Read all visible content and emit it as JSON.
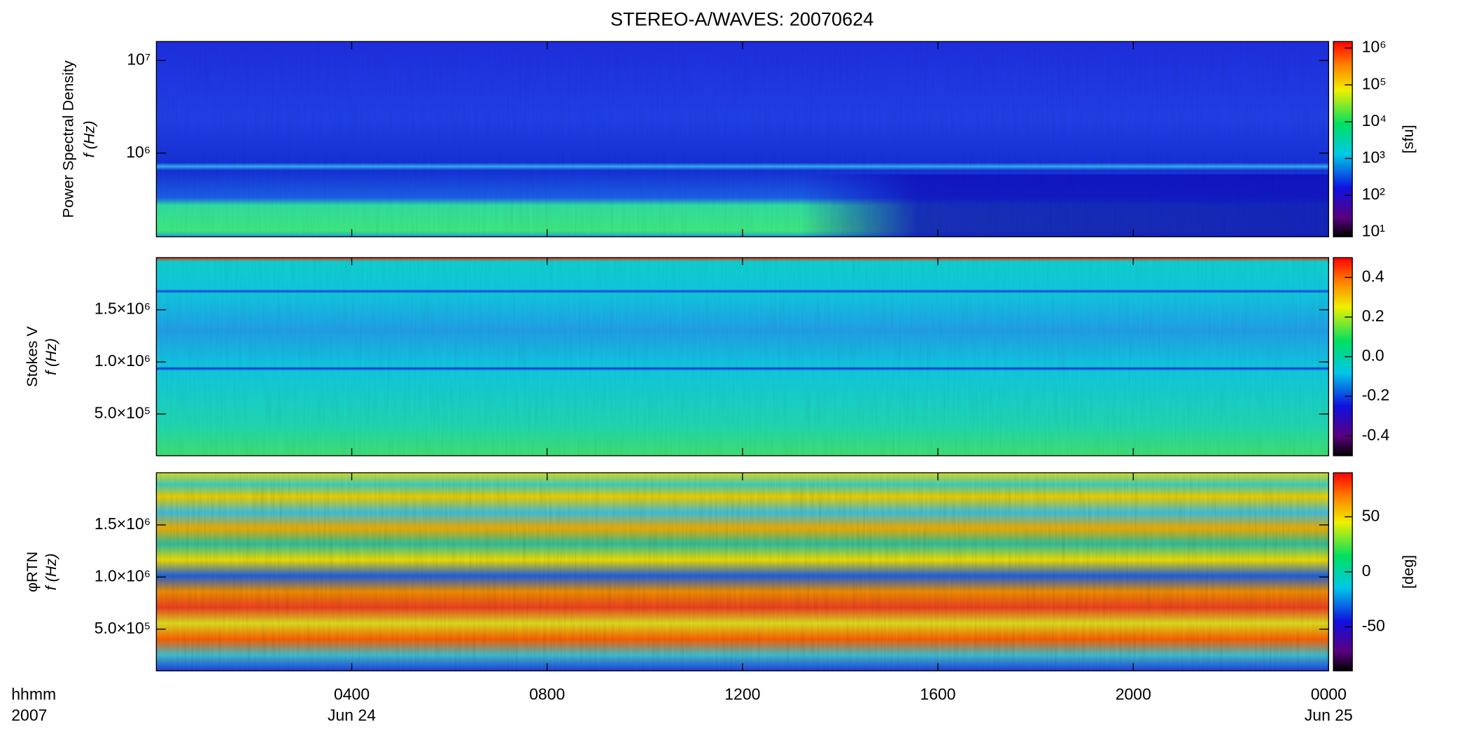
{
  "title": "STEREO-A/WAVES: 20070624",
  "x_axis": {
    "xlim": [
      0,
      24
    ],
    "xticks": [
      {
        "value": 4,
        "label": "0400"
      },
      {
        "value": 8,
        "label": "0800"
      },
      {
        "value": 12,
        "label": "1200"
      },
      {
        "value": 16,
        "label": "1600"
      },
      {
        "value": 20,
        "label": "2000"
      },
      {
        "value": 24,
        "label": "0000"
      }
    ],
    "time_label": "hhmm",
    "year_label": "2007",
    "date_labels": [
      {
        "at": 4,
        "label": "Jun 24"
      },
      {
        "at": 24,
        "label": "Jun 25"
      }
    ]
  },
  "chart_data": [
    {
      "type": "heatmap",
      "ylabel": [
        "Power Spectral Density",
        "f (Hz)"
      ],
      "log_y": true,
      "ylim": [
        125000,
        16000000
      ],
      "yticks": [
        {
          "value": 1000000,
          "label": "10⁶"
        },
        {
          "value": 10000000,
          "label": "10⁷"
        }
      ],
      "colorbar": {
        "label": "[sfu]",
        "log": true,
        "clim": [
          7.5,
          1500000
        ],
        "ticks": [
          {
            "value": 10,
            "label": "10¹"
          },
          {
            "value": 100,
            "label": "10²"
          },
          {
            "value": 1000,
            "label": "10³"
          },
          {
            "value": 10000,
            "label": "10⁴"
          },
          {
            "value": 100000,
            "label": "10⁵"
          },
          {
            "value": 1000000,
            "label": "10⁶"
          }
        ]
      }
    },
    {
      "type": "heatmap",
      "ylabel": [
        "Stokes V",
        "f (Hz)"
      ],
      "log_y": false,
      "ylim": [
        100000,
        2000000
      ],
      "yticks": [
        {
          "value": 500000,
          "label": "5.0×10⁵"
        },
        {
          "value": 1000000,
          "label": "1.0×10⁶"
        },
        {
          "value": 1500000,
          "label": "1.5×10⁶"
        }
      ],
      "colorbar": {
        "log": false,
        "clim": [
          -0.5,
          0.5
        ],
        "ticks": [
          -0.4,
          -0.2,
          {
            "value": 0,
            "label": "0.0"
          },
          0.2,
          0.4
        ]
      }
    },
    {
      "type": "heatmap",
      "ylabel": [
        "φRTN",
        "f (Hz)"
      ],
      "log_y": false,
      "ylim": [
        100000,
        2000000
      ],
      "yticks": [
        {
          "value": 500000,
          "label": "5.0×10⁵"
        },
        {
          "value": 1000000,
          "label": "1.0×10⁶"
        },
        {
          "value": 1500000,
          "label": "1.5×10⁶"
        }
      ],
      "colorbar": {
        "label": "[deg]",
        "log": false,
        "clim": [
          -90,
          90
        ],
        "ticks": [
          -50,
          0,
          50
        ]
      }
    }
  ]
}
